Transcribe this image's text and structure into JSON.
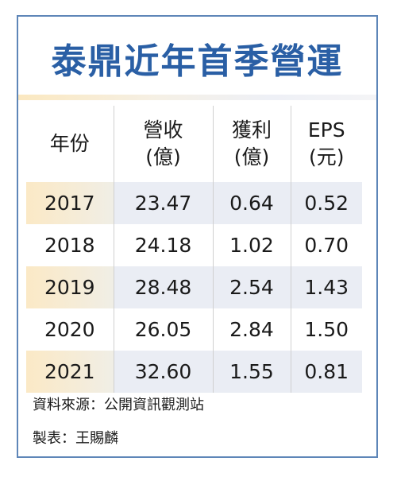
{
  "title": "泰鼎近年首季營運",
  "table": {
    "headers": [
      {
        "line1": "年份",
        "line2": ""
      },
      {
        "line1": "營收",
        "line2": "(億)"
      },
      {
        "line1": "獲利",
        "line2": "(億)"
      },
      {
        "line1": "EPS",
        "line2": "(元)"
      }
    ],
    "rows": [
      {
        "year": "2017",
        "revenue": "23.47",
        "profit": "0.64",
        "eps": "0.52"
      },
      {
        "year": "2018",
        "revenue": "24.18",
        "profit": "1.02",
        "eps": "0.70"
      },
      {
        "year": "2019",
        "revenue": "28.48",
        "profit": "2.54",
        "eps": "1.43"
      },
      {
        "year": "2020",
        "revenue": "26.05",
        "profit": "2.84",
        "eps": "1.50"
      },
      {
        "year": "2021",
        "revenue": "32.60",
        "profit": "1.55",
        "eps": "0.81"
      }
    ]
  },
  "footer": {
    "source": "資料來源：公開資訊觀測站",
    "maker": "製表：王賜麟"
  },
  "colors": {
    "title": "#2a5fa5",
    "border": "#5e86b8",
    "row_shade": "#eaedf4",
    "year_shade": "#fbe9c6"
  }
}
